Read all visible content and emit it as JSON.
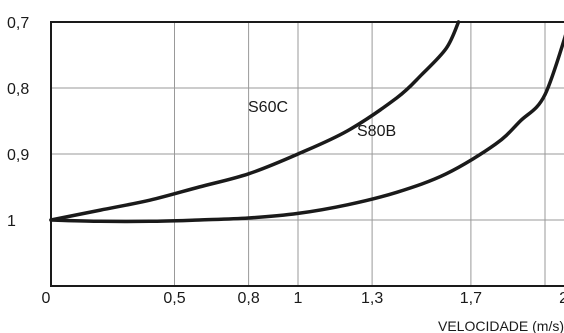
{
  "chart_data": {
    "type": "line",
    "title": "",
    "xlabel": "VELOCIDADE (m/s)",
    "ylabel": "",
    "x_ticks": [
      {
        "value": 0,
        "label": "0"
      },
      {
        "value": 0.5,
        "label": "0,5"
      },
      {
        "value": 0.8,
        "label": "0,8"
      },
      {
        "value": 1,
        "label": "1"
      },
      {
        "value": 1.3,
        "label": "1,3"
      },
      {
        "value": 1.7,
        "label": "1,7"
      },
      {
        "value": 2,
        "label": "2"
      }
    ],
    "y_ticks": [
      {
        "value": 0.7,
        "label": "0,7"
      },
      {
        "value": 0.8,
        "label": "0,8"
      },
      {
        "value": 0.9,
        "label": "0,9"
      },
      {
        "value": 1.0,
        "label": "1"
      }
    ],
    "ylim_top": 0.7,
    "ylim_bottom": 1.1,
    "y_inverted": true,
    "grid": true,
    "series": [
      {
        "name": "S60C",
        "color": "#1a1a1a",
        "points": [
          {
            "x": 0,
            "y": 1.0
          },
          {
            "x": 0.2,
            "y": 0.985
          },
          {
            "x": 0.4,
            "y": 0.97
          },
          {
            "x": 0.6,
            "y": 0.95
          },
          {
            "x": 0.8,
            "y": 0.93
          },
          {
            "x": 1.0,
            "y": 0.9
          },
          {
            "x": 1.2,
            "y": 0.865
          },
          {
            "x": 1.4,
            "y": 0.815
          },
          {
            "x": 1.5,
            "y": 0.78
          },
          {
            "x": 1.6,
            "y": 0.74
          },
          {
            "x": 1.65,
            "y": 0.7
          }
        ]
      },
      {
        "name": "S80B",
        "color": "#1a1a1a",
        "points": [
          {
            "x": 0,
            "y": 1.0
          },
          {
            "x": 0.2,
            "y": 1.002
          },
          {
            "x": 0.4,
            "y": 1.002
          },
          {
            "x": 0.6,
            "y": 1.0
          },
          {
            "x": 0.8,
            "y": 0.997
          },
          {
            "x": 1.0,
            "y": 0.99
          },
          {
            "x": 1.2,
            "y": 0.977
          },
          {
            "x": 1.4,
            "y": 0.958
          },
          {
            "x": 1.6,
            "y": 0.93
          },
          {
            "x": 1.8,
            "y": 0.885
          },
          {
            "x": 1.9,
            "y": 0.85
          },
          {
            "x": 2.0,
            "y": 0.81
          },
          {
            "x": 2.1,
            "y": 0.7
          }
        ]
      }
    ]
  }
}
